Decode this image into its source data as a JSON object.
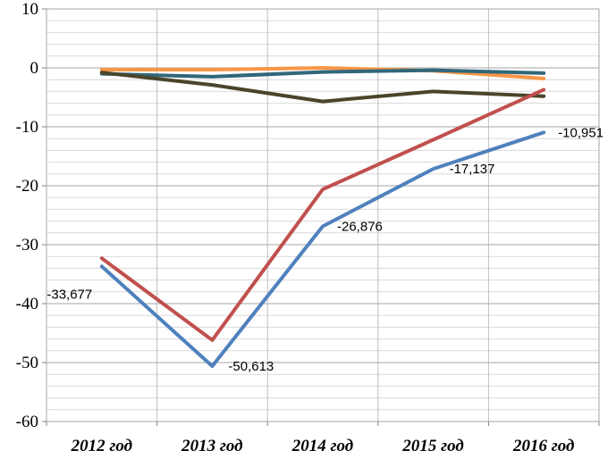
{
  "chart_data": {
    "type": "line",
    "categories": [
      "2012 год",
      "2013 год",
      "2014 год",
      "2015 год",
      "2016 год"
    ],
    "ylim": [
      -60,
      10
    ],
    "yticks": [
      10,
      0,
      -10,
      -20,
      -30,
      -40,
      -50,
      -60
    ],
    "ytick_labels": [
      "10",
      "0",
      "-10",
      "-20",
      "-30",
      "-40",
      "-50",
      "-60"
    ],
    "grid": {
      "major": true,
      "minor": true,
      "minor_step": 2,
      "vertical": true
    },
    "legend": "none",
    "series": [
      {
        "color": "#4f81bd",
        "values": [
          -33.677,
          -50.613,
          -26.876,
          -17.137,
          -10.951
        ],
        "data_labels": [
          "-33,677",
          "-50,613",
          "-26,876",
          "-17,137",
          "-10,951"
        ]
      },
      {
        "color": "#c0504d",
        "values": [
          -32.3,
          -46.2,
          -20.6,
          -12.2,
          -3.7
        ]
      },
      {
        "color": "#4a452a",
        "values": [
          -0.8,
          -2.9,
          -5.7,
          -4.0,
          -4.8
        ]
      },
      {
        "color": "#31677a",
        "values": [
          -1.0,
          -1.5,
          -0.7,
          -0.4,
          -0.9
        ]
      },
      {
        "color": "#f79646",
        "values": [
          -0.3,
          -0.3,
          0.0,
          -0.5,
          -1.8
        ]
      }
    ]
  }
}
